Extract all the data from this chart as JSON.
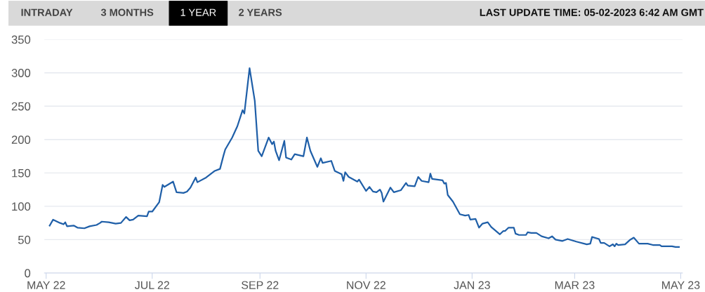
{
  "chart_data": {
    "type": "line",
    "annotations": [
      "INTRADAY",
      "3 MONTHS",
      "1 YEAR",
      "2 YEARS",
      "LAST UPDATE TIME: 05-02-2023 6:42 AM GMT"
    ],
    "x": [
      "2022-05-03",
      "2022-05-05",
      "2022-05-09",
      "2022-05-11",
      "2022-05-12",
      "2022-05-13",
      "2022-05-17",
      "2022-05-19",
      "2022-05-23",
      "2022-05-26",
      "2022-05-30",
      "2022-06-01",
      "2022-06-02",
      "2022-06-06",
      "2022-06-10",
      "2022-06-13",
      "2022-06-16",
      "2022-06-18",
      "2022-06-20",
      "2022-06-23",
      "2022-06-28",
      "2022-06-29",
      "2022-07-01",
      "2022-07-05",
      "2022-07-07",
      "2022-07-08",
      "2022-07-13",
      "2022-07-15",
      "2022-07-19",
      "2022-07-21",
      "2022-07-23",
      "2022-07-26",
      "2022-07-27",
      "2022-08-01",
      "2022-08-06",
      "2022-08-09",
      "2022-08-11",
      "2022-08-12",
      "2022-08-16",
      "2022-08-19",
      "2022-08-22",
      "2022-08-23",
      "2022-08-26",
      "2022-08-29",
      "2022-08-31",
      "2022-09-02",
      "2022-09-06",
      "2022-09-08",
      "2022-09-09",
      "2022-09-10",
      "2022-09-12",
      "2022-09-15",
      "2022-09-16",
      "2022-09-19",
      "2022-09-21",
      "2022-09-26",
      "2022-09-28",
      "2022-09-30",
      "2022-10-04",
      "2022-10-06",
      "2022-10-07",
      "2022-10-12",
      "2022-10-14",
      "2022-10-18",
      "2022-10-19",
      "2022-10-20",
      "2022-10-22",
      "2022-10-27",
      "2022-10-28",
      "2022-11-01",
      "2022-11-03",
      "2022-11-05",
      "2022-11-07",
      "2022-11-09",
      "2022-11-10",
      "2022-11-11",
      "2022-11-15",
      "2022-11-17",
      "2022-11-21",
      "2022-11-24",
      "2022-11-25",
      "2022-11-29",
      "2022-12-01",
      "2022-12-03",
      "2022-12-07",
      "2022-12-08",
      "2022-12-09",
      "2022-12-15",
      "2022-12-16",
      "2022-12-17",
      "2022-12-18",
      "2022-12-21",
      "2022-12-25",
      "2022-12-28",
      "2022-12-30",
      "2022-12-31",
      "2023-01-03",
      "2023-01-05",
      "2023-01-07",
      "2023-01-10",
      "2023-01-12",
      "2023-01-17",
      "2023-01-19",
      "2023-01-20",
      "2023-01-22",
      "2023-01-25",
      "2023-01-26",
      "2023-01-28",
      "2023-02-01",
      "2023-02-02",
      "2023-02-04",
      "2023-02-07",
      "2023-02-10",
      "2023-02-14",
      "2023-02-16",
      "2023-02-18",
      "2023-02-22",
      "2023-02-25",
      "2023-03-02",
      "2023-03-08",
      "2023-03-10",
      "2023-03-11",
      "2023-03-15",
      "2023-03-16",
      "2023-03-18",
      "2023-03-21",
      "2023-03-23",
      "2023-03-24",
      "2023-03-25",
      "2023-03-26",
      "2023-03-30",
      "2023-04-02",
      "2023-04-04",
      "2023-04-07",
      "2023-04-12",
      "2023-04-15",
      "2023-04-19",
      "2023-04-20",
      "2023-04-26",
      "2023-04-28",
      "2023-04-30"
    ],
    "series": [
      {
        "color": "#1f5fa8",
        "values": [
          71,
          80,
          75,
          73,
          76,
          70,
          71,
          68,
          67,
          70,
          72,
          75,
          77,
          76,
          74,
          75,
          84,
          79,
          80,
          86,
          85,
          92,
          92,
          106,
          132,
          129,
          137,
          121,
          120,
          122,
          128,
          143,
          136,
          143,
          153,
          156,
          176,
          185,
          203,
          220,
          244,
          239,
          307,
          258,
          183,
          175,
          203,
          193,
          197,
          183,
          169,
          198,
          173,
          170,
          178,
          175,
          203,
          183,
          159,
          172,
          165,
          168,
          153,
          148,
          138,
          151,
          144,
          137,
          140,
          123,
          129,
          122,
          121,
          125,
          120,
          107,
          128,
          121,
          124,
          135,
          131,
          130,
          144,
          138,
          136,
          149,
          141,
          139,
          134,
          135,
          117,
          107,
          88,
          86,
          87,
          80,
          81,
          68,
          74,
          76,
          69,
          58,
          63,
          63,
          68,
          68,
          59,
          57,
          57,
          61,
          60,
          60,
          55,
          52,
          55,
          50,
          48,
          51,
          47,
          43,
          44,
          54,
          51,
          45,
          45,
          40,
          43,
          40,
          44,
          42,
          43,
          50,
          53,
          44,
          44,
          42,
          42,
          40,
          40,
          39,
          39
        ]
      }
    ],
    "xlim": [
      "2022-04-30",
      "2023-05-02"
    ],
    "xticks": [
      {
        "value": "2022-05-01",
        "label": "MAY 22"
      },
      {
        "value": "2022-07-01",
        "label": "JUL 22"
      },
      {
        "value": "2022-09-01",
        "label": "SEP 22"
      },
      {
        "value": "2022-11-01",
        "label": "NOV 22"
      },
      {
        "value": "2023-01-01",
        "label": "JAN 23"
      },
      {
        "value": "2023-03-01",
        "label": "MAR 23"
      },
      {
        "value": "2023-05-01",
        "label": "MAY 23"
      }
    ],
    "ylim": [
      0,
      350
    ],
    "yticks": [
      0,
      50,
      100,
      150,
      200,
      250,
      300,
      350
    ],
    "grid": "y",
    "marker": "none",
    "line_style": "solid"
  }
}
